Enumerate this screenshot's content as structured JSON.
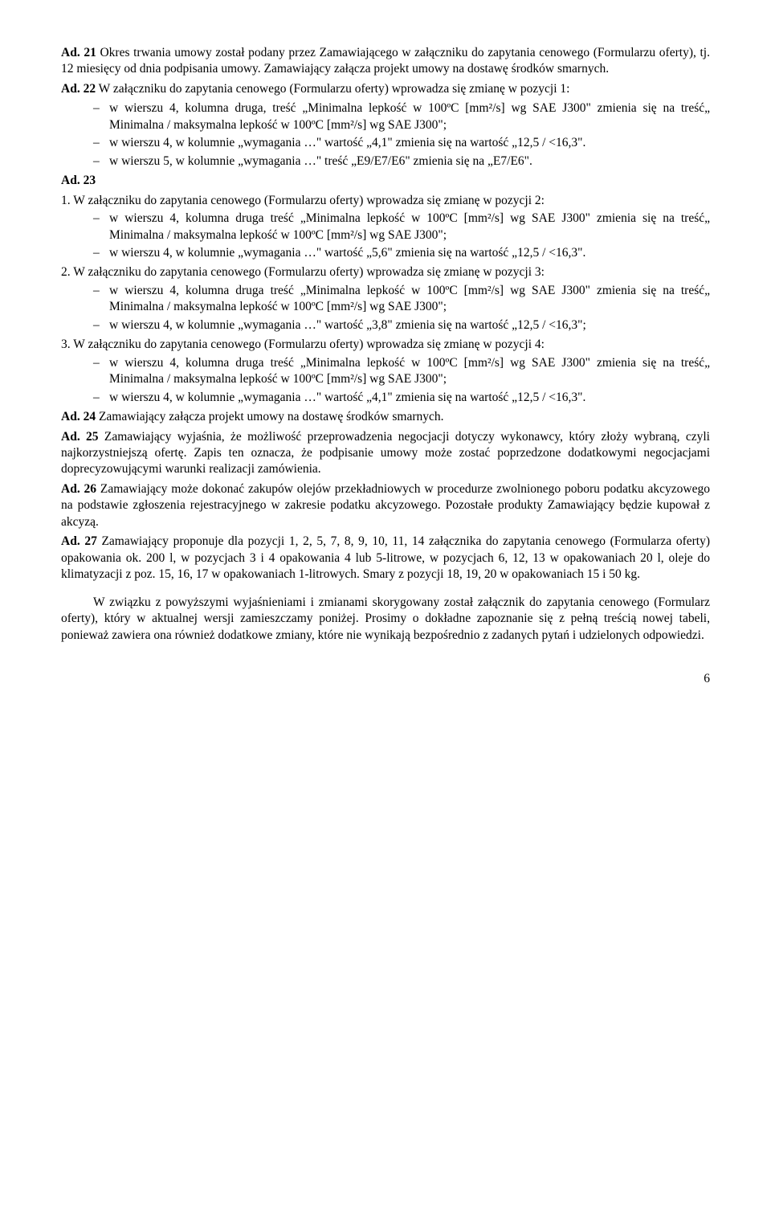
{
  "ad21": {
    "label": "Ad. 21",
    "text": " Okres trwania umowy został podany przez Zamawiającego w załączniku do zapytania cenowego (Formularzu oferty), tj. 12 miesięcy od dnia podpisania umowy. Zamawiający załącza projekt umowy na dostawę środków smarnych."
  },
  "ad22": {
    "label": "Ad. 22",
    "text": " W załączniku do zapytania cenowego (Formularzu oferty) wprowadza się zmianę w pozycji 1:",
    "b1": "w wierszu 4, kolumna druga, treść „Minimalna lepkość w 100ºC [mm²/s] wg SAE J300\" zmienia się na treść„ Minimalna / maksymalna lepkość w 100ºC [mm²/s] wg SAE J300\";",
    "b2": "w wierszu 4, w kolumnie „wymagania …\" wartość „4,1\" zmienia się na wartość „12,5 / <16,3\".",
    "b3": "w wierszu 5, w kolumnie „wymagania …\" treść „E9/E7/E6\" zmienia się na „E7/E6\"."
  },
  "ad23": {
    "label": "Ad. 23",
    "p1_lead": "1. W załączniku do zapytania cenowego (Formularzu oferty) wprowadza się zmianę w pozycji 2:",
    "p1_b1": "w wierszu 4, kolumna druga treść „Minimalna lepkość w 100ºC [mm²/s] wg SAE J300\" zmienia się na treść„ Minimalna / maksymalna lepkość w 100ºC [mm²/s] wg SAE J300\";",
    "p1_b2": "w wierszu 4, w kolumnie „wymagania …\" wartość „5,6\" zmienia się na wartość „12,5 / <16,3\".",
    "p2_lead": "2. W załączniku do zapytania cenowego (Formularzu oferty) wprowadza się zmianę w pozycji 3:",
    "p2_b1": "w wierszu 4, kolumna druga treść „Minimalna lepkość w 100ºC [mm²/s] wg SAE J300\" zmienia się na treść„ Minimalna / maksymalna lepkość w 100ºC [mm²/s] wg SAE J300\";",
    "p2_b2": "w wierszu 4, w kolumnie „wymagania …\" wartość „3,8\" zmienia się na wartość „12,5 / <16,3\";",
    "p3_lead": "3. W załączniku do zapytania cenowego (Formularzu oferty) wprowadza się zmianę w pozycji 4:",
    "p3_b1": "w wierszu 4, kolumna druga treść „Minimalna lepkość w 100ºC [mm²/s] wg SAE J300\" zmienia się na treść„ Minimalna / maksymalna lepkość w 100ºC [mm²/s] wg SAE J300\";",
    "p3_b2": "w wierszu 4, w kolumnie „wymagania …\" wartość „4,1\" zmienia się na wartość „12,5 / <16,3\"."
  },
  "ad24": {
    "label": "Ad. 24",
    "text": " Zamawiający załącza projekt umowy na dostawę środków smarnych."
  },
  "ad25": {
    "label": "Ad. 25",
    "text": " Zamawiający wyjaśnia, że możliwość przeprowadzenia negocjacji dotyczy wykonawcy, który złoży wybraną, czyli najkorzystniejszą ofertę. Zapis ten oznacza, że podpisanie umowy może zostać poprzedzone dodatkowymi negocjacjami doprecyzowującymi warunki realizacji zamówienia."
  },
  "ad26": {
    "label": "Ad. 26",
    "text": " Zamawiający może dokonać zakupów olejów przekładniowych w procedurze zwolnionego poboru podatku akcyzowego na podstawie zgłoszenia rejestracyjnego w zakresie podatku akcyzowego. Pozostałe produkty Zamawiający będzie kupował z akcyzą."
  },
  "ad27": {
    "label": "Ad. 27",
    "text": " Zamawiający proponuje dla pozycji 1, 2, 5, 7, 8, 9, 10, 11, 14 załącznika do zapytania cenowego (Formularza oferty) opakowania ok. 200 l, w pozycjach 3 i 4 opakowania 4 lub 5-litrowe, w pozycjach 6, 12, 13 w opakowaniach 20 l, oleje do klimatyzacji z poz. 15, 16, 17 w opakowaniach 1-litrowych. Smary z pozycji 18, 19, 20 w opakowaniach 15 i 50 kg."
  },
  "closing": "W związku z powyższymi wyjaśnieniami i zmianami skorygowany został załącznik do zapytania cenowego (Formularz oferty), który w aktualnej wersji zamieszczamy poniżej. Prosimy o dokładne zapoznanie się z pełną treścią nowej tabeli, ponieważ zawiera ona również dodatkowe zmiany, które nie wynikają bezpośrednio z zadanych pytań i udzielonych odpowiedzi.",
  "page_number": "6"
}
